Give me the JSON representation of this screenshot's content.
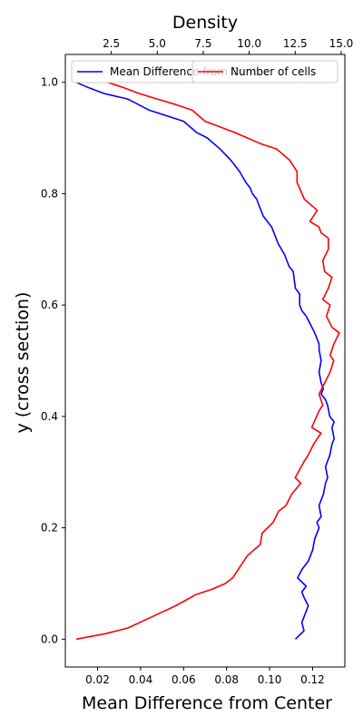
{
  "chart_data": {
    "type": "line",
    "xlabel_bottom": "Mean Difference from Center",
    "xlabel_top": "Density",
    "ylabel": "y (cross section)",
    "xlim_bottom": [
      0.005,
      0.135
    ],
    "xlim_top": [
      0.0,
      15.2
    ],
    "ylim": [
      -0.05,
      1.05
    ],
    "xticks_bottom": [
      0.02,
      0.04,
      0.06,
      0.08,
      0.1,
      0.12
    ],
    "xtick_labels_bottom": [
      "0.02",
      "0.04",
      "0.06",
      "0.08",
      "0.10",
      "0.12"
    ],
    "xticks_top": [
      2.5,
      5.0,
      7.5,
      10.0,
      12.5,
      15.0
    ],
    "xtick_labels_top": [
      "2.5",
      "5.0",
      "7.5",
      "10.0",
      "12.5",
      "15.0"
    ],
    "yticks": [
      0.0,
      0.2,
      0.4,
      0.6,
      0.8,
      1.0
    ],
    "ytick_labels": [
      "0.0",
      "0.2",
      "0.4",
      "0.6",
      "0.8",
      "1.0"
    ],
    "grid": false,
    "legend_placement": "top",
    "series": [
      {
        "name": "Mean Difference from Center",
        "axis": "bottom",
        "color": "#0000ff",
        "x": [
          0.112,
          0.116,
          0.115,
          0.117,
          0.118,
          0.116,
          0.115,
          0.117,
          0.113,
          0.115,
          0.118,
          0.12,
          0.121,
          0.122,
          0.123,
          0.122,
          0.124,
          0.123,
          0.125,
          0.126,
          0.127,
          0.126,
          0.128,
          0.129,
          0.13,
          0.129,
          0.13,
          0.128,
          0.127,
          0.126,
          0.124,
          0.125,
          0.124,
          0.123,
          0.124,
          0.123,
          0.123,
          0.121,
          0.117,
          0.115,
          0.114,
          0.114,
          0.112,
          0.111,
          0.109,
          0.107,
          0.104,
          0.101,
          0.099,
          0.097,
          0.095,
          0.094,
          0.092,
          0.091,
          0.089,
          0.086,
          0.082,
          0.077,
          0.071,
          0.066,
          0.06,
          0.052,
          0.044,
          0.034,
          0.023,
          0.016,
          0.01
        ],
        "y": [
          0.0,
          0.015,
          0.03,
          0.05,
          0.06,
          0.075,
          0.085,
          0.095,
          0.11,
          0.125,
          0.14,
          0.16,
          0.18,
          0.19,
          0.2,
          0.21,
          0.22,
          0.24,
          0.26,
          0.28,
          0.29,
          0.31,
          0.33,
          0.35,
          0.36,
          0.38,
          0.39,
          0.4,
          0.42,
          0.43,
          0.44,
          0.45,
          0.46,
          0.48,
          0.5,
          0.52,
          0.53,
          0.55,
          0.58,
          0.59,
          0.6,
          0.62,
          0.63,
          0.66,
          0.67,
          0.69,
          0.71,
          0.74,
          0.75,
          0.76,
          0.78,
          0.79,
          0.8,
          0.81,
          0.82,
          0.84,
          0.86,
          0.88,
          0.9,
          0.91,
          0.93,
          0.94,
          0.95,
          0.97,
          0.98,
          0.99,
          1.0
        ]
      },
      {
        "name": "Number of cells",
        "axis": "top",
        "color": "#ff0000",
        "x": [
          0.6,
          2.2,
          3.4,
          4.7,
          6.0,
          7.1,
          8.0,
          8.7,
          9.1,
          9.5,
          9.9,
          10.6,
          10.7,
          11.3,
          11.6,
          12.0,
          12.3,
          12.8,
          12.5,
          13.0,
          13.2,
          13.5,
          13.9,
          13.4,
          13.8,
          14.0,
          13.8,
          14.1,
          14.4,
          14.6,
          14.4,
          14.6,
          14.9,
          14.5,
          14.2,
          14.4,
          14.0,
          14.3,
          14.5,
          14.1,
          14.0,
          14.3,
          14.3,
          13.9,
          13.8,
          13.3,
          13.7,
          13.0,
          12.6,
          12.6,
          12.2,
          11.5,
          10.6,
          9.9,
          9.2,
          8.4,
          7.6,
          6.9,
          6.0,
          5.0,
          4.0,
          3.2,
          2.3
        ],
        "y": [
          0.0,
          0.01,
          0.02,
          0.04,
          0.06,
          0.08,
          0.09,
          0.1,
          0.11,
          0.13,
          0.15,
          0.17,
          0.19,
          0.21,
          0.23,
          0.24,
          0.26,
          0.28,
          0.29,
          0.32,
          0.33,
          0.35,
          0.37,
          0.38,
          0.41,
          0.42,
          0.44,
          0.46,
          0.48,
          0.5,
          0.51,
          0.53,
          0.55,
          0.56,
          0.58,
          0.6,
          0.61,
          0.63,
          0.65,
          0.66,
          0.68,
          0.7,
          0.72,
          0.73,
          0.74,
          0.75,
          0.77,
          0.79,
          0.82,
          0.84,
          0.86,
          0.88,
          0.89,
          0.9,
          0.91,
          0.92,
          0.93,
          0.95,
          0.96,
          0.97,
          0.98,
          0.99,
          1.0
        ]
      }
    ]
  }
}
